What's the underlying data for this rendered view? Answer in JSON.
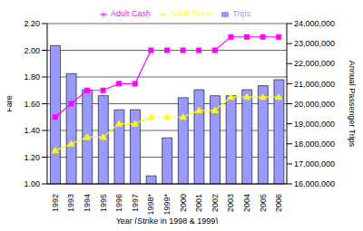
{
  "chart_data": {
    "type": "bar",
    "x_label": "Year (Strike in 1998 & 1999)",
    "y_label": "Fare",
    "y2_label": "Annual Passenger Trips",
    "categories": [
      "1992",
      "1993",
      "1994",
      "1995",
      "1996",
      "1997",
      "1998*",
      "1999*",
      "2000",
      "2001",
      "2002",
      "2003",
      "2004",
      "2005",
      "2006"
    ],
    "series": [
      {
        "name": "Trips",
        "type": "bar",
        "axis": "y2",
        "color": "#9999ff",
        "values": [
          22900000,
          21500000,
          20700000,
          20400000,
          19700000,
          19700000,
          16400000,
          18300000,
          20300000,
          20700000,
          20400000,
          20400000,
          20700000,
          20900000,
          21200000
        ]
      },
      {
        "name": "Adult Cash",
        "type": "line",
        "color": "#ff00ff",
        "marker": "square",
        "values": [
          1.5,
          1.6,
          1.7,
          1.7,
          1.75,
          1.75,
          2.0,
          2.0,
          2.0,
          2.0,
          2.0,
          2.1,
          2.1,
          2.1,
          2.1
        ]
      },
      {
        "name": "Adult Ticket",
        "type": "line",
        "color": "#ffff00",
        "marker": "triangle",
        "values": [
          1.25,
          1.3,
          1.35,
          1.35,
          1.45,
          1.45,
          1.5,
          1.5,
          1.5,
          1.55,
          1.55,
          1.65,
          1.65,
          1.65,
          1.65
        ]
      }
    ],
    "ylim": [
      1.0,
      2.2
    ],
    "yticks": [
      {
        "value": 1.0,
        "label": "1.00"
      },
      {
        "value": 1.2,
        "label": "1.20"
      },
      {
        "value": 1.4,
        "label": "1.40"
      },
      {
        "value": 1.6,
        "label": "1.60"
      },
      {
        "value": 1.8,
        "label": "1.80"
      },
      {
        "value": 2.0,
        "label": "2.00"
      },
      {
        "value": 2.2,
        "label": "2.20"
      }
    ],
    "y2lim": [
      16000000,
      24000000
    ],
    "y2ticks": [
      {
        "value": 16000000,
        "label": "16,000,000"
      },
      {
        "value": 17000000,
        "label": "17,000,000"
      },
      {
        "value": 18000000,
        "label": "18,000,000"
      },
      {
        "value": 19000000,
        "label": "19,000,000"
      },
      {
        "value": 20000000,
        "label": "20,000,000"
      },
      {
        "value": 21000000,
        "label": "21,000,000"
      },
      {
        "value": 22000000,
        "label": "22,000,000"
      },
      {
        "value": 23000000,
        "label": "23,000,000"
      },
      {
        "value": 24000000,
        "label": "24,000,000"
      }
    ],
    "grid": true,
    "legend": "top"
  }
}
